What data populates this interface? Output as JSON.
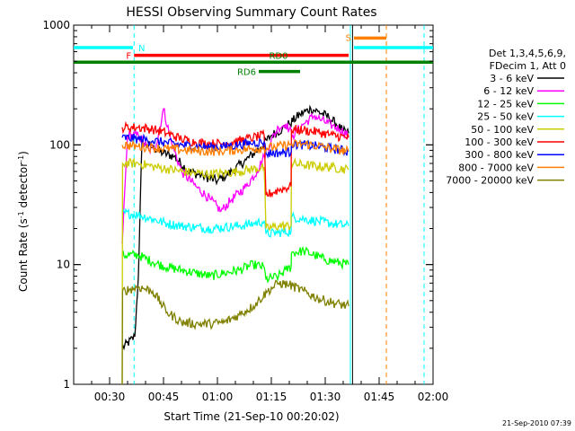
{
  "chart_data": {
    "type": "line",
    "title": "HESSI Observing Summary Count Rates",
    "xlabel": "Start Time (21-Sep-10 00:20:02)",
    "ylabel_main": "Count Rate (s",
    "ylabel_sup1": "-1",
    "ylabel_mid": " detector",
    "ylabel_sup2": "-1",
    "ylabel_end": ")",
    "timestamp": "21-Sep-2010 07:39",
    "x_unit": "minutes after 00:00 UT",
    "xlim": [
      20,
      120
    ],
    "ylim": [
      1,
      1000
    ],
    "yscale": "log",
    "x_ticks": [
      {
        "t": 30,
        "label": "00:30"
      },
      {
        "t": 45,
        "label": "00:45"
      },
      {
        "t": 60,
        "label": "01:00"
      },
      {
        "t": 75,
        "label": "01:15"
      },
      {
        "t": 90,
        "label": "01:30"
      },
      {
        "t": 105,
        "label": "01:45"
      },
      {
        "t": 120,
        "label": "02:00"
      }
    ],
    "y_ticks": [
      {
        "v": 1,
        "label": "1"
      },
      {
        "v": 10,
        "label": "10"
      },
      {
        "v": 100,
        "label": "100"
      },
      {
        "v": 1000,
        "label": "1000"
      }
    ],
    "legend": {
      "position": "right",
      "header": [
        "Det 1,3,4,5,6,9,",
        "FDecim 1, Att 0"
      ]
    },
    "series": [
      {
        "name": "3 - 6 keV",
        "color": "#000000",
        "points": [
          [
            33.5,
            2
          ],
          [
            37,
            2.5
          ],
          [
            38,
            8
          ],
          [
            39,
            105
          ],
          [
            42,
            95
          ],
          [
            45,
            85
          ],
          [
            48,
            80
          ],
          [
            52,
            60
          ],
          [
            56,
            55
          ],
          [
            60,
            50
          ],
          [
            64,
            60
          ],
          [
            68,
            75
          ],
          [
            72,
            95
          ],
          [
            75,
            120
          ],
          [
            78,
            135
          ],
          [
            80,
            150
          ],
          [
            83,
            180
          ],
          [
            86,
            200
          ],
          [
            88,
            190
          ],
          [
            91,
            170
          ],
          [
            93,
            150
          ],
          [
            95,
            130
          ],
          [
            96.5,
            125
          ]
        ]
      },
      {
        "name": "6 - 12 keV",
        "color": "#ff00ff",
        "points": [
          [
            33.5,
            15
          ],
          [
            35,
            120
          ],
          [
            38,
            120
          ],
          [
            41,
            90
          ],
          [
            43,
            100
          ],
          [
            45,
            200
          ],
          [
            47,
            110
          ],
          [
            50,
            60
          ],
          [
            54,
            45
          ],
          [
            58,
            35
          ],
          [
            61,
            28
          ],
          [
            64,
            35
          ],
          [
            68,
            45
          ],
          [
            71,
            60
          ],
          [
            73,
            80
          ],
          [
            75,
            110
          ],
          [
            77,
            140
          ],
          [
            79,
            150
          ],
          [
            81,
            120
          ],
          [
            84,
            150
          ],
          [
            87,
            175
          ],
          [
            89,
            160
          ],
          [
            92,
            145
          ],
          [
            94,
            135
          ],
          [
            96.5,
            120
          ]
        ]
      },
      {
        "name": "12 - 25 keV",
        "color": "#00ff00",
        "points": [
          [
            33.5,
            12
          ],
          [
            38,
            12
          ],
          [
            42,
            10.5
          ],
          [
            46,
            9.5
          ],
          [
            50,
            9
          ],
          [
            54,
            8.5
          ],
          [
            58,
            8
          ],
          [
            62,
            8.5
          ],
          [
            66,
            9
          ],
          [
            70,
            10
          ],
          [
            73,
            9.5
          ],
          [
            73.5,
            7.5
          ],
          [
            77,
            8
          ],
          [
            79,
            9
          ],
          [
            80.5,
            9.5
          ],
          [
            80.6,
            12.5
          ],
          [
            84,
            13
          ],
          [
            87,
            12
          ],
          [
            90,
            11
          ],
          [
            93,
            10.5
          ],
          [
            96.5,
            10
          ]
        ]
      },
      {
        "name": "25 - 50 keV",
        "color": "#00ffff",
        "points": [
          [
            33.5,
            27
          ],
          [
            38,
            26
          ],
          [
            42,
            24
          ],
          [
            46,
            22
          ],
          [
            50,
            21
          ],
          [
            54,
            20.5
          ],
          [
            58,
            20
          ],
          [
            62,
            20.5
          ],
          [
            66,
            21
          ],
          [
            70,
            22
          ],
          [
            73,
            23
          ],
          [
            73.5,
            18
          ],
          [
            77,
            18.5
          ],
          [
            80.5,
            19
          ],
          [
            80.6,
            25
          ],
          [
            84,
            24
          ],
          [
            88,
            23
          ],
          [
            92,
            22
          ],
          [
            96.5,
            21
          ]
        ]
      },
      {
        "name": "50 - 100 keV",
        "color": "#cccc00",
        "points": [
          [
            33.5,
            1
          ],
          [
            33.6,
            70
          ],
          [
            38,
            70
          ],
          [
            42,
            66
          ],
          [
            46,
            63
          ],
          [
            50,
            60
          ],
          [
            54,
            58
          ],
          [
            58,
            57
          ],
          [
            62,
            58
          ],
          [
            66,
            60
          ],
          [
            70,
            63
          ],
          [
            73,
            65
          ],
          [
            73.5,
            20
          ],
          [
            77,
            21
          ],
          [
            80.5,
            21
          ],
          [
            80.6,
            70
          ],
          [
            84,
            68
          ],
          [
            88,
            66
          ],
          [
            92,
            65
          ],
          [
            96.5,
            62
          ]
        ]
      },
      {
        "name": "100 - 300 keV",
        "color": "#ff0000",
        "points": [
          [
            33.5,
            140
          ],
          [
            38,
            140
          ],
          [
            42,
            135
          ],
          [
            46,
            125
          ],
          [
            50,
            112
          ],
          [
            54,
            105
          ],
          [
            58,
            102
          ],
          [
            62,
            103
          ],
          [
            66,
            108
          ],
          [
            70,
            115
          ],
          [
            73,
            120
          ],
          [
            73.5,
            38
          ],
          [
            77,
            42
          ],
          [
            80.5,
            45
          ],
          [
            80.6,
            135
          ],
          [
            84,
            132
          ],
          [
            88,
            128
          ],
          [
            92,
            120
          ],
          [
            96.5,
            115
          ]
        ]
      },
      {
        "name": "300 - 800 keV",
        "color": "#0000ff",
        "points": [
          [
            33.5,
            115
          ],
          [
            38,
            112
          ],
          [
            42,
            108
          ],
          [
            46,
            104
          ],
          [
            50,
            100
          ],
          [
            54,
            97
          ],
          [
            58,
            96
          ],
          [
            62,
            97
          ],
          [
            66,
            100
          ],
          [
            70,
            104
          ],
          [
            73,
            106
          ],
          [
            73.5,
            85
          ],
          [
            77,
            86
          ],
          [
            80.5,
            87
          ],
          [
            80.6,
            102
          ],
          [
            84,
            100
          ],
          [
            88,
            97
          ],
          [
            92,
            93
          ],
          [
            96.5,
            88
          ]
        ]
      },
      {
        "name": "800 - 7000 keV",
        "color": "#ff8000",
        "points": [
          [
            33.5,
            100
          ],
          [
            38,
            97
          ],
          [
            42,
            95
          ],
          [
            46,
            93
          ],
          [
            50,
            91
          ],
          [
            54,
            89
          ],
          [
            58,
            88
          ],
          [
            62,
            89
          ],
          [
            66,
            91
          ],
          [
            70,
            93
          ],
          [
            73,
            94
          ],
          [
            76,
            96
          ],
          [
            80,
            100
          ],
          [
            84,
            102
          ],
          [
            88,
            98
          ],
          [
            92,
            93
          ],
          [
            96.5,
            88
          ]
        ]
      },
      {
        "name": "7000 - 20000 keV",
        "color": "#808000",
        "points": [
          [
            33.5,
            1
          ],
          [
            33.6,
            6
          ],
          [
            38,
            6.5
          ],
          [
            42,
            6
          ],
          [
            46,
            4
          ],
          [
            50,
            3.3
          ],
          [
            54,
            3.2
          ],
          [
            58,
            3.2
          ],
          [
            62,
            3.3
          ],
          [
            66,
            3.8
          ],
          [
            70,
            4.5
          ],
          [
            74,
            6
          ],
          [
            77,
            7
          ],
          [
            80,
            6.8
          ],
          [
            84,
            6
          ],
          [
            88,
            5.2
          ],
          [
            92,
            4.8
          ],
          [
            96.5,
            4.5
          ]
        ]
      }
    ],
    "flag_lines": [
      {
        "label": "N",
        "color": "#00ffff",
        "y_value": 650,
        "segments": [
          [
            20,
            36.5
          ],
          [
            98,
            120
          ]
        ]
      },
      {
        "label": "F",
        "color": "#ff0000",
        "y_value": 560,
        "segments": [
          [
            36.8,
            96.5
          ]
        ]
      },
      {
        "label": "RD0",
        "color": "#008000",
        "y_value": 490,
        "segments": [
          [
            20,
            120
          ]
        ]
      },
      {
        "label": "RD6",
        "color": "#008000",
        "y_value": 410,
        "segments": [
          [
            71.5,
            83
          ]
        ]
      },
      {
        "label": "S",
        "color": "#ff8000",
        "y_value": 780,
        "segments": [
          [
            98,
            107
          ]
        ]
      }
    ],
    "markers": [
      {
        "t": 36.8,
        "color": "#00ffff",
        "style": "dashed"
      },
      {
        "t": 97,
        "color": "#00ffff",
        "style": "solid"
      },
      {
        "t": 97.6,
        "color": "#000000",
        "style": "solid"
      },
      {
        "t": 107,
        "color": "#ff8000",
        "style": "dashed"
      },
      {
        "t": 117.5,
        "color": "#00ffff",
        "style": "dashed"
      }
    ]
  }
}
